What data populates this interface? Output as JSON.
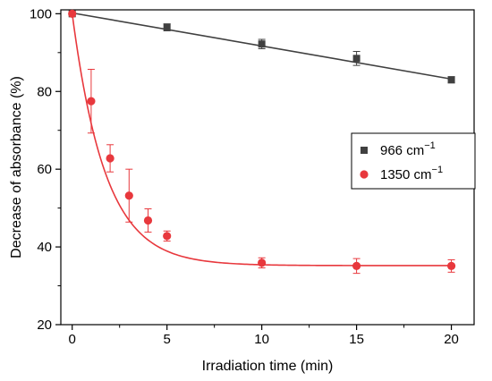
{
  "chart_data": {
    "type": "scatter",
    "xlabel": "Irradiation time (min)",
    "ylabel": "Decrease of absorbance (%)",
    "xlim": [
      -0.6,
      21.2
    ],
    "ylim": [
      20,
      101
    ],
    "xticks": [
      0,
      5,
      10,
      15,
      20
    ],
    "yticks": [
      20,
      40,
      60,
      80,
      100
    ],
    "xtick_labels": [
      "0",
      "5",
      "10",
      "15",
      "20"
    ],
    "ytick_labels": [
      "20",
      "40",
      "60",
      "80",
      "100"
    ],
    "grid": false,
    "legend_position": "right-middle",
    "series": [
      {
        "name": "966 cm",
        "name_superscript": "−1",
        "color": "#404040",
        "marker": "square",
        "x": [
          0,
          5,
          10,
          15,
          20
        ],
        "y": [
          100,
          96.5,
          92.2,
          88.5,
          83
        ],
        "err": [
          0,
          0.9,
          1.2,
          1.8,
          0.8
        ],
        "fit": {
          "type": "linear",
          "x0": 0,
          "x1": 20,
          "y0": 100.2,
          "y1": 83.2
        }
      },
      {
        "name": "1350 cm",
        "name_superscript": "−1",
        "color": "#e8383d",
        "marker": "circle",
        "x": [
          0,
          1,
          2,
          3,
          4,
          5,
          10,
          15,
          20
        ],
        "y": [
          100,
          77.5,
          62.8,
          53.2,
          46.8,
          42.8,
          35.9,
          35.1,
          35.1
        ],
        "err": [
          0,
          8.2,
          3.5,
          6.8,
          3,
          1.3,
          1.3,
          1.9,
          1.6
        ],
        "fit": {
          "type": "exp_decay",
          "y_inf": 35.2,
          "amplitude": 64.8,
          "tau": 1.75,
          "x0": 0,
          "x1": 20
        }
      }
    ]
  }
}
